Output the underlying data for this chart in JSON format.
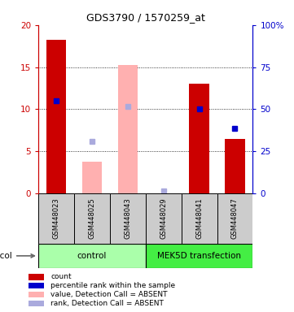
{
  "title": "GDS3790 / 1570259_at",
  "samples": [
    "GSM448023",
    "GSM448025",
    "GSM448043",
    "GSM448029",
    "GSM448041",
    "GSM448047"
  ],
  "count_values": [
    18.2,
    null,
    null,
    null,
    13.0,
    6.5
  ],
  "percentile_values": [
    11.0,
    null,
    null,
    null,
    10.0,
    7.7
  ],
  "absent_value_values": [
    null,
    3.8,
    15.2,
    null,
    null,
    null
  ],
  "absent_rank_values": [
    null,
    6.2,
    10.3,
    0.3,
    null,
    null
  ],
  "ylim": [
    0,
    20
  ],
  "y2lim": [
    0,
    100
  ],
  "yticks": [
    0,
    5,
    10,
    15,
    20
  ],
  "y2ticks": [
    0,
    25,
    50,
    75,
    100
  ],
  "y2ticklabels": [
    "0",
    "25",
    "50",
    "75",
    "100%"
  ],
  "bar_width": 0.55,
  "count_color": "#cc0000",
  "percentile_color": "#0000cc",
  "absent_value_color": "#ffb0b0",
  "absent_rank_color": "#aaaadd",
  "control_color": "#aaffaa",
  "transfection_color": "#44ee44",
  "sample_box_color": "#cccccc",
  "legend_items": [
    {
      "label": "count",
      "color": "#cc0000"
    },
    {
      "label": "percentile rank within the sample",
      "color": "#0000cc"
    },
    {
      "label": "value, Detection Call = ABSENT",
      "color": "#ffb0b0"
    },
    {
      "label": "rank, Detection Call = ABSENT",
      "color": "#aaaadd"
    }
  ]
}
